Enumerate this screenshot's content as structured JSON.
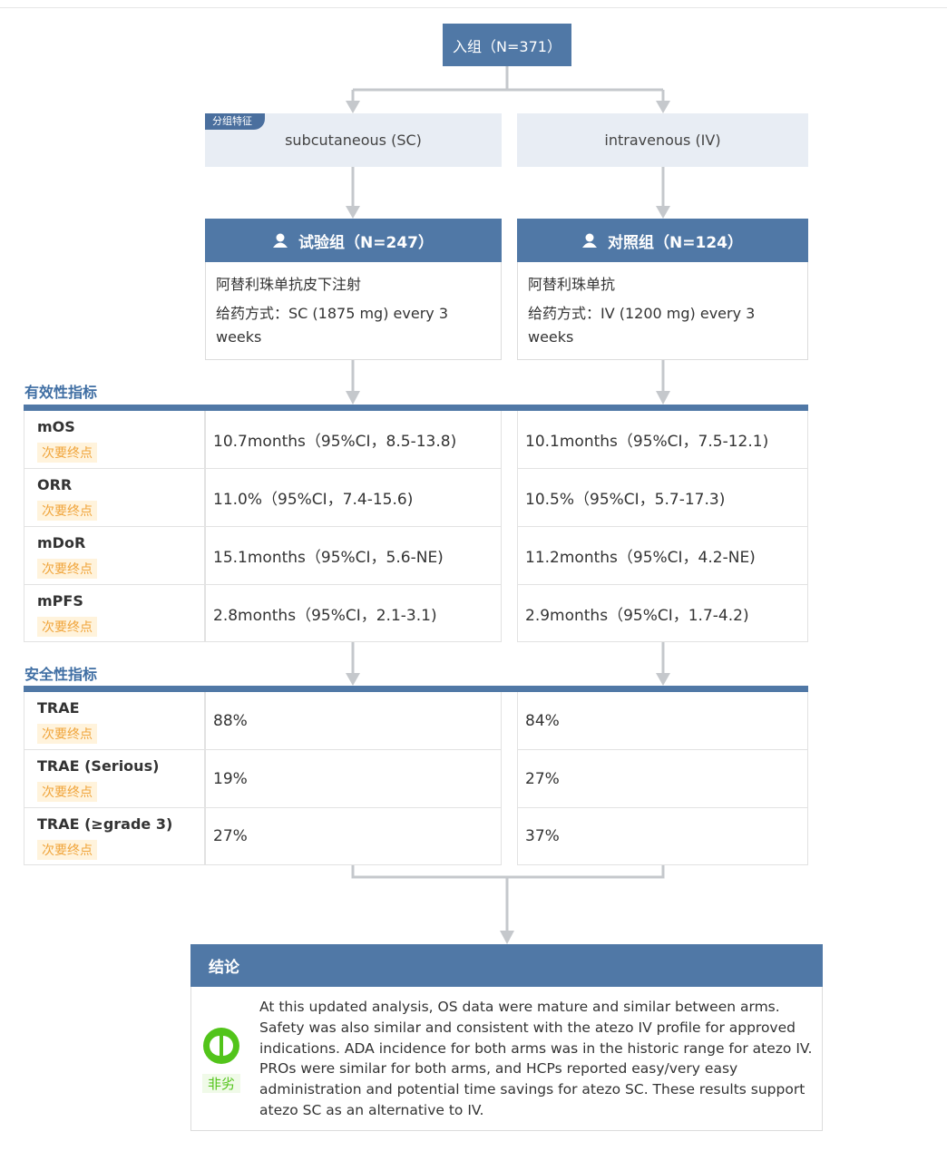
{
  "enrollment": "入组（N=371）",
  "grouping_tag": "分组特征",
  "groups": [
    {
      "route": "subcutaneous (SC)",
      "title": "试验组（N=247）",
      "drug": "阿替利珠单抗皮下注射",
      "dosing": "给药方式：SC (1875 mg) every 3 weeks"
    },
    {
      "route": "intravenous (IV)",
      "title": "对照组（N=124）",
      "drug": "阿替利珠单抗",
      "dosing": "给药方式：IV (1200 mg) every 3 weeks"
    }
  ],
  "efficacy": {
    "title": "有效性指标",
    "rows": [
      {
        "name": "mOS",
        "tag": "次要终点",
        "values": [
          "10.7months（95%CI，8.5-13.8)",
          "10.1months（95%CI，7.5-12.1)"
        ]
      },
      {
        "name": "ORR",
        "tag": "次要终点",
        "values": [
          "11.0%（95%CI，7.4-15.6)",
          "10.5%（95%CI，5.7-17.3)"
        ]
      },
      {
        "name": "mDoR",
        "tag": "次要终点",
        "values": [
          "15.1months（95%CI，5.6-NE)",
          "11.2months（95%CI，4.2-NE)"
        ]
      },
      {
        "name": "mPFS",
        "tag": "次要终点",
        "values": [
          "2.8months（95%CI，2.1-3.1)",
          "2.9months（95%CI，1.7-4.2)"
        ]
      }
    ]
  },
  "safety": {
    "title": "安全性指标",
    "rows": [
      {
        "name": "TRAE",
        "tag": "次要终点",
        "values": [
          "88%",
          "84%"
        ]
      },
      {
        "name": "TRAE (Serious)",
        "tag": "次要终点",
        "values": [
          "19%",
          "27%"
        ]
      },
      {
        "name": "TRAE (≥grade 3)",
        "tag": "次要终点",
        "values": [
          "27%",
          "37%"
        ]
      }
    ]
  },
  "conclusion": {
    "title": "结论",
    "badge": "非劣",
    "text": "At this updated analysis, OS data were mature and similar between arms. Safety was also similar and consistent with the atezo IV profile for approved indications. ADA incidence for both arms was in the historic range for atezo IV. PROs were similar for both arms, and HCPs reported easy/very easy administration and potential time savings for atezo SC. These results support atezo SC as an alternative to IV."
  }
}
